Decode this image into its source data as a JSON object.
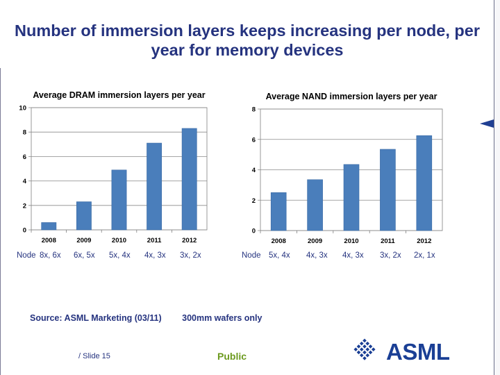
{
  "title_line1": "Number of immersion layers keeps increasing per node, per",
  "title_line2": "year for memory devices",
  "chart_data": [
    {
      "type": "bar",
      "title": "Average DRAM immersion layers per year",
      "categories": [
        "2008",
        "2009",
        "2010",
        "2011",
        "2012"
      ],
      "values": [
        0.6,
        2.3,
        4.9,
        7.1,
        8.3
      ],
      "ylim": [
        0,
        10
      ],
      "yticks": [
        0,
        2,
        4,
        6,
        8,
        10
      ],
      "xlabel": "",
      "ylabel": "",
      "grid": true,
      "color": "#4a7ebb"
    },
    {
      "type": "bar",
      "title": "Average NAND immersion layers per year",
      "categories": [
        "2008",
        "2009",
        "2010",
        "2011",
        "2012"
      ],
      "values": [
        2.5,
        3.35,
        4.35,
        5.35,
        6.25
      ],
      "ylim": [
        0,
        8
      ],
      "yticks": [
        0,
        2,
        4,
        6,
        8
      ],
      "xlabel": "",
      "ylabel": "",
      "grid": true,
      "color": "#4a7ebb"
    }
  ],
  "dram_nodes": {
    "label": "Node",
    "values": [
      "8x, 6x",
      "6x, 5x",
      "5x, 4x",
      "4x, 3x",
      "3x, 2x"
    ]
  },
  "nand_nodes": {
    "label": "Node",
    "values": [
      "5x, 4x",
      "4x, 3x",
      "4x, 3x",
      "3x, 2x",
      "2x, 1x"
    ]
  },
  "source": "Source: ASML Marketing (03/11)",
  "wafers_note": "300mm wafers only",
  "footer": {
    "slide": "/ Slide 15",
    "classification": "Public"
  },
  "logo": {
    "text": "ASML",
    "icon": "asml-diamond-logo-icon"
  },
  "colors": {
    "title": "#25337f",
    "bar": "#4a7ebb",
    "public": "#6c9a1f",
    "marker": "#1f3f93"
  }
}
